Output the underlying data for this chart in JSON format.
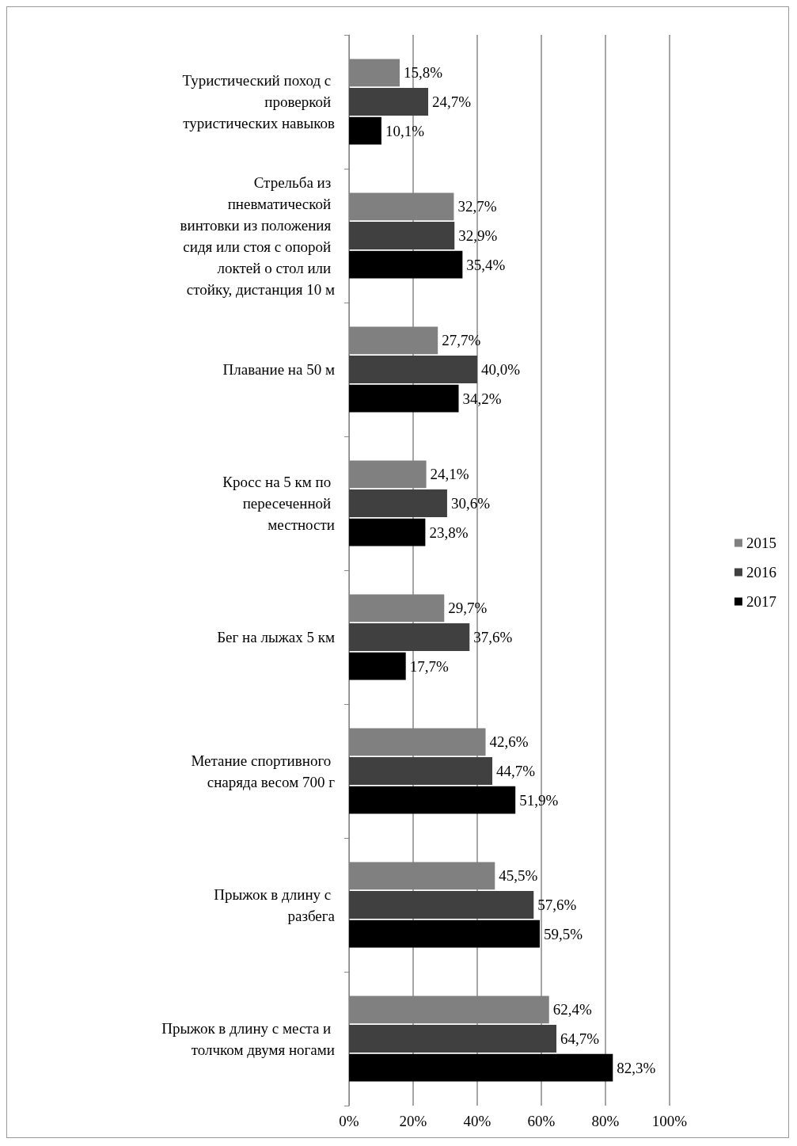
{
  "chart_data": {
    "type": "bar",
    "orientation": "horizontal",
    "categories": [
      "Туристический поход с проверкой туристических навыков",
      "Стрельба из пневматической винтовки из положения сидя или стоя с опорой локтей о стол или стойку, дистанция 10 м",
      "Плавание на 50 м",
      "Кросс на 5 км по пересеченной местности",
      "Бег на лыжах 5 км",
      "Метание спортивного снаряда весом 700 г",
      "Прыжок в длину с разбега",
      "Прыжок в длину с места и толчком двумя ногами"
    ],
    "series": [
      {
        "name": "2015",
        "color": "#808080",
        "values": [
          15.8,
          32.7,
          27.7,
          24.1,
          29.7,
          42.6,
          45.5,
          62.4
        ],
        "value_labels": [
          "15,8%",
          "32,7%",
          "27,7%",
          "24,1%",
          "29,7%",
          "42,6%",
          "45,5%",
          "62,4%"
        ]
      },
      {
        "name": "2016",
        "color": "#404040",
        "values": [
          24.7,
          32.9,
          40.0,
          30.6,
          37.6,
          44.7,
          57.6,
          64.7
        ],
        "value_labels": [
          "24,7%",
          "32,9%",
          "40,0%",
          "30,6%",
          "37,6%",
          "44,7%",
          "57,6%",
          "64,7%"
        ]
      },
      {
        "name": "2017",
        "color": "#000000",
        "values": [
          10.1,
          35.4,
          34.2,
          23.8,
          17.7,
          51.9,
          59.5,
          82.3
        ],
        "value_labels": [
          "10,1%",
          "35,4%",
          "34,2%",
          "23,8%",
          "17,7%",
          "51,9%",
          "59,5%",
          "82,3%"
        ]
      }
    ],
    "xlim": [
      0,
      100
    ],
    "xticks": [
      {
        "value": 0,
        "label": "0%"
      },
      {
        "value": 20,
        "label": "20%"
      },
      {
        "value": 40,
        "label": "40%"
      },
      {
        "value": 60,
        "label": "60%"
      },
      {
        "value": 80,
        "label": "80%"
      },
      {
        "value": 100,
        "label": "100%"
      }
    ],
    "grid": "x",
    "legend": "right"
  }
}
